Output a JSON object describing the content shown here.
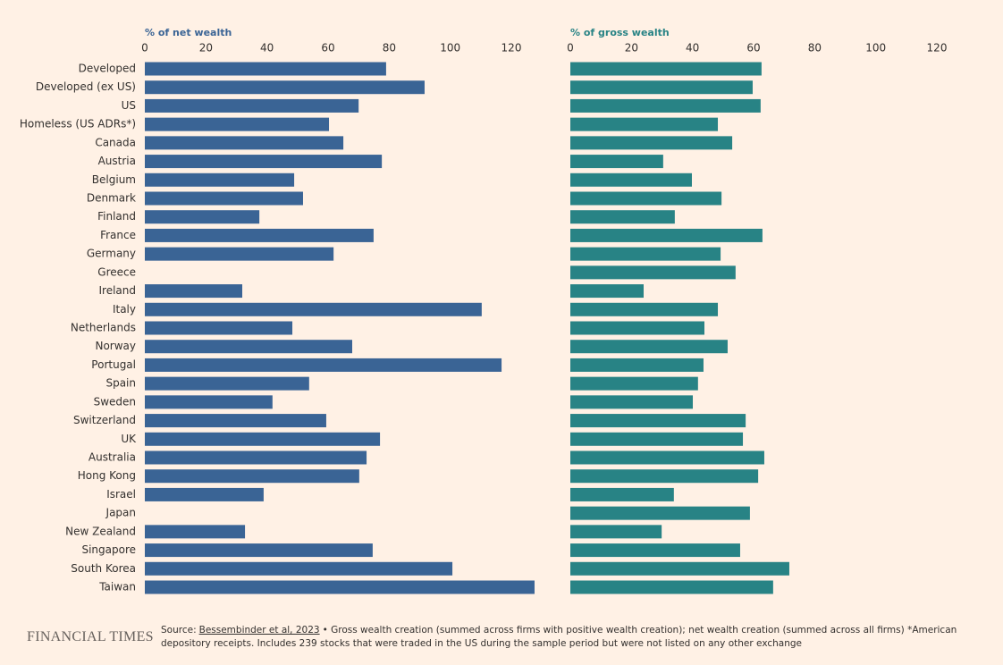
{
  "chart_data": {
    "type": "bar",
    "orientation": "horizontal",
    "categories": [
      "Developed",
      "Developed (ex US)",
      "US",
      "Homeless (US ADRs*)",
      "Canada",
      "Austria",
      "Belgium",
      "Denmark",
      "Finland",
      "France",
      "Germany",
      "Greece",
      "Ireland",
      "Italy",
      "Netherlands",
      "Norway",
      "Portugal",
      "Spain",
      "Sweden",
      "Switzerland",
      "UK",
      "Australia",
      "Hong Kong",
      "Israel",
      "Japan",
      "New Zealand",
      "Singapore",
      "South Korea",
      "Taiwan"
    ],
    "series": [
      {
        "name": "% of net wealth",
        "color": "#3a6495",
        "xlim": [
          0,
          120
        ],
        "xticks": [
          0,
          20,
          40,
          60,
          80,
          100,
          120
        ],
        "values": [
          79,
          91.6,
          70,
          60.3,
          65,
          77.6,
          48.9,
          51.8,
          37.5,
          74.9,
          61.8,
          null,
          31.9,
          110.3,
          48.3,
          67.9,
          116.8,
          53.8,
          41.8,
          59.4,
          77,
          72.6,
          70.2,
          38.9,
          null,
          32.8,
          74.6,
          100.7,
          127.6
        ]
      },
      {
        "name": "% of gross wealth",
        "color": "#288385",
        "xlim": [
          0,
          120
        ],
        "xticks": [
          0,
          20,
          40,
          60,
          80,
          100,
          120
        ],
        "values": [
          62.6,
          59.7,
          62.3,
          48.3,
          53,
          30.4,
          39.8,
          49.5,
          34.2,
          62.9,
          49.2,
          54.1,
          24,
          48.3,
          43.9,
          51.5,
          43.6,
          41.8,
          40.1,
          57.4,
          56.5,
          63.5,
          61.5,
          33.9,
          58.8,
          29.9,
          55.6,
          71.7,
          66.4
        ]
      }
    ],
    "source": {
      "label": "Source:",
      "link": "Bessembinder et al, 2023",
      "text": "• Gross wealth creation (summed across firms with positive wealth creation); net wealth creation (summed across all firms) *American depository receipts. Includes 239 stocks that were traded in the US during the sample period but were not listed on any other exchange"
    },
    "logo": "FINANCIAL TIMES"
  }
}
